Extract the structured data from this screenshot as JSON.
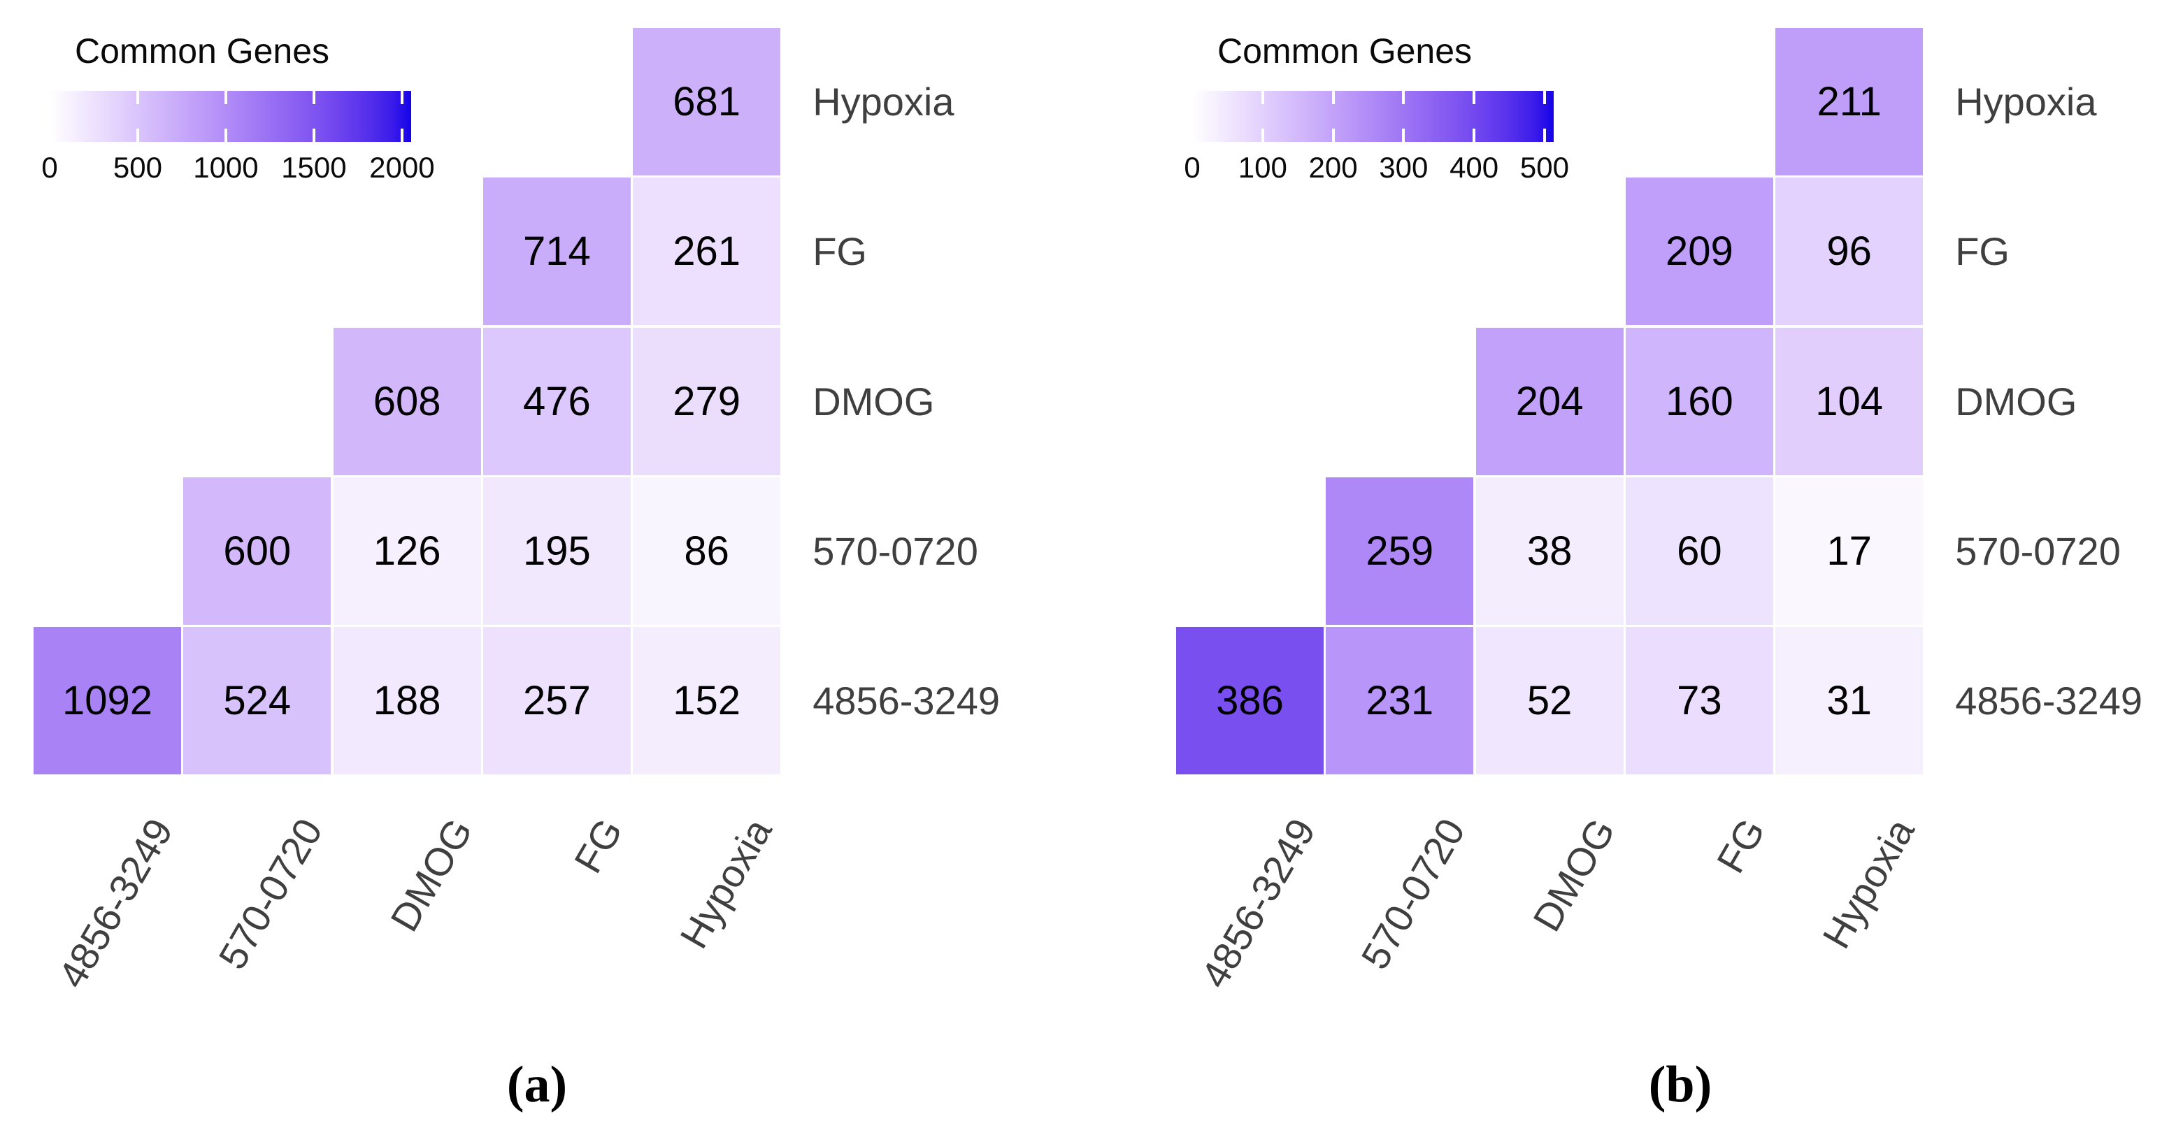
{
  "styles": {
    "background": "#FFFFFF",
    "color_low": "#FFFFFF",
    "color_high": "#1403E8",
    "axis_text_color": "#3F3F3F",
    "value_text_color": "#000000"
  },
  "chart_data": [
    {
      "type": "heatmap",
      "panel_label": "(a)",
      "legend_title": "Common Genes",
      "legend_position": "top-left",
      "grid": false,
      "x_categories": [
        "4856-3249",
        "570-0720",
        "DMOG",
        "FG",
        "Hypoxia"
      ],
      "y_categories": [
        "Hypoxia",
        "FG",
        "DMOG",
        "570-0720",
        "4856-3249"
      ],
      "matrix": [
        [
          null,
          null,
          null,
          null,
          681
        ],
        [
          null,
          null,
          null,
          714,
          261
        ],
        [
          null,
          null,
          608,
          476,
          279
        ],
        [
          null,
          600,
          126,
          195,
          86
        ],
        [
          1092,
          524,
          188,
          257,
          152
        ]
      ],
      "colorbar_ticks": [
        0,
        500,
        1000,
        1500,
        2000
      ],
      "colorbar_range": [
        0,
        2052
      ]
    },
    {
      "type": "heatmap",
      "panel_label": "(b)",
      "legend_title": "Common Genes",
      "legend_position": "top-left",
      "grid": false,
      "x_categories": [
        "4856-3249",
        "570-0720",
        "DMOG",
        "FG",
        "Hypoxia"
      ],
      "y_categories": [
        "Hypoxia",
        "FG",
        "DMOG",
        "570-0720",
        "4856-3249"
      ],
      "matrix": [
        [
          null,
          null,
          null,
          null,
          211
        ],
        [
          null,
          null,
          null,
          209,
          96
        ],
        [
          null,
          null,
          204,
          160,
          104
        ],
        [
          null,
          259,
          38,
          60,
          17
        ],
        [
          386,
          231,
          52,
          73,
          31
        ]
      ],
      "colorbar_ticks": [
        0,
        100,
        200,
        300,
        400,
        500
      ],
      "colorbar_range": [
        0,
        513
      ]
    }
  ]
}
